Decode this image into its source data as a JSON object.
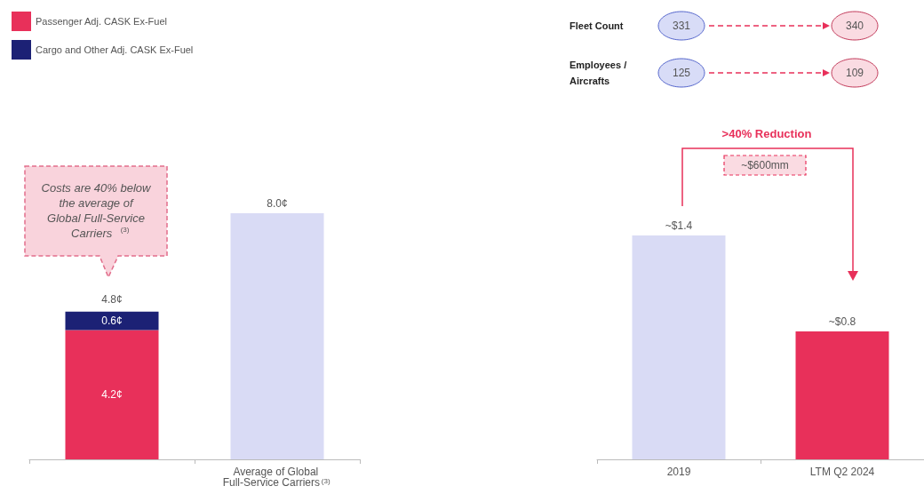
{
  "chart_data": [
    {
      "type": "bar",
      "stacked": true,
      "legend": "top left",
      "categories": [
        null,
        "Average of Global Full-Service Carriers$^{(3)}$"
      ],
      "series": [
        {
          "name": "Passenger Adj. CASK Ex-Fuel",
          "color": "#e8305a",
          "values": [
            4.2,
            null
          ],
          "value_labels": [
            "4.2¢",
            null
          ]
        },
        {
          "name": "Cargo and Other Adj. CASK Ex-Fuel",
          "color": "#1c2175",
          "values": [
            0.6,
            null
          ],
          "value_labels": [
            "0.6¢",
            null
          ]
        },
        {
          "color": "#d9dbf5",
          "values": [
            null,
            8.0
          ],
          "value_labels": [
            null,
            "8.0¢"
          ]
        }
      ],
      "totals": [
        "4.8¢",
        null
      ],
      "annotations": [
        "Costs are 40% below the average of Global Full-Service Carriers$^{(3)}$"
      ]
    },
    {
      "type": "bar",
      "categories": [
        "2019",
        "LTM Q2 2024"
      ],
      "values": [
        1.4,
        0.8
      ],
      "colors": [
        "#d9dbf5",
        "#e8305a"
      ],
      "value_labels": [
        "~$1.4",
        "~$0.8"
      ],
      "annotations": [
        "Fleet Count",
        "331",
        "340",
        "Employees / Aircrafts",
        "125",
        "109",
        ">40% Reduction",
        "~$600mm"
      ]
    }
  ]
}
